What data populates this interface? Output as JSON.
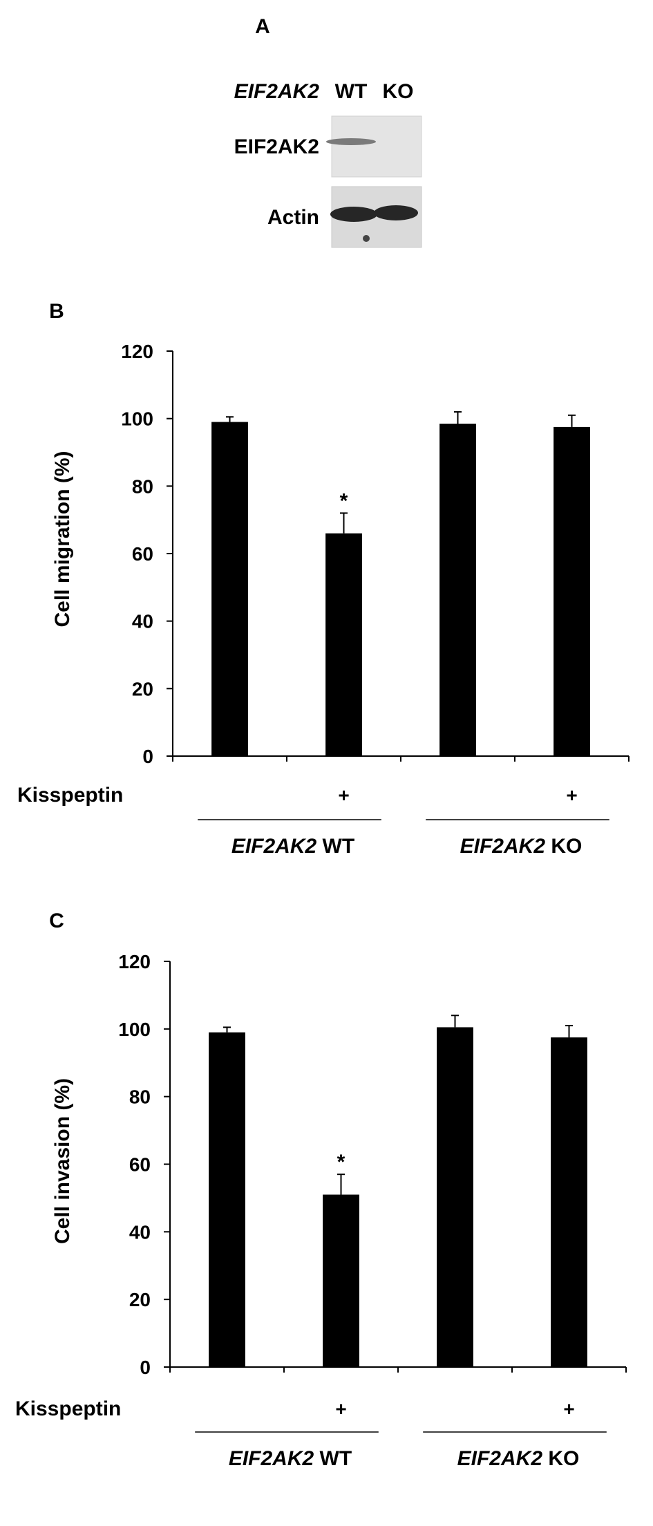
{
  "panel_a": {
    "label": "A",
    "gene_label": "EIF2AK2",
    "lane_wt": "WT",
    "lane_ko": "KO",
    "row_target": "EIF2AK2",
    "row_loading": "Actin"
  },
  "chart_data": [
    {
      "type": "bar",
      "panel_label": "B",
      "ylabel": "Cell migration (%)",
      "ylim": [
        0,
        120
      ],
      "yticks": [
        "0",
        "20",
        "40",
        "60",
        "80",
        "100",
        "120"
      ],
      "treatment_label": "Kisspeptin",
      "treatment_marks": [
        "",
        "+",
        "",
        "+"
      ],
      "groups": [
        {
          "gene": "EIF2AK2",
          "suffix": "WT"
        },
        {
          "gene": "EIF2AK2",
          "suffix": "KO"
        }
      ],
      "values": [
        99,
        66,
        98.5,
        97.5
      ],
      "errors": [
        1.5,
        6,
        3.5,
        3.5
      ],
      "significance": [
        "",
        "*",
        "",
        ""
      ],
      "bar_color": "#000000"
    },
    {
      "type": "bar",
      "panel_label": "C",
      "ylabel": "Cell invasion (%)",
      "ylim": [
        0,
        120
      ],
      "yticks": [
        "0",
        "20",
        "40",
        "60",
        "80",
        "100",
        "120"
      ],
      "treatment_label": "Kisspeptin",
      "treatment_marks": [
        "",
        "+",
        "",
        "+"
      ],
      "groups": [
        {
          "gene": "EIF2AK2",
          "suffix": "WT"
        },
        {
          "gene": "EIF2AK2",
          "suffix": "KO"
        }
      ],
      "values": [
        99,
        51,
        100.5,
        97.5
      ],
      "errors": [
        1.5,
        6,
        3.5,
        3.5
      ],
      "significance": [
        "",
        "*",
        "",
        ""
      ],
      "bar_color": "#000000"
    }
  ]
}
